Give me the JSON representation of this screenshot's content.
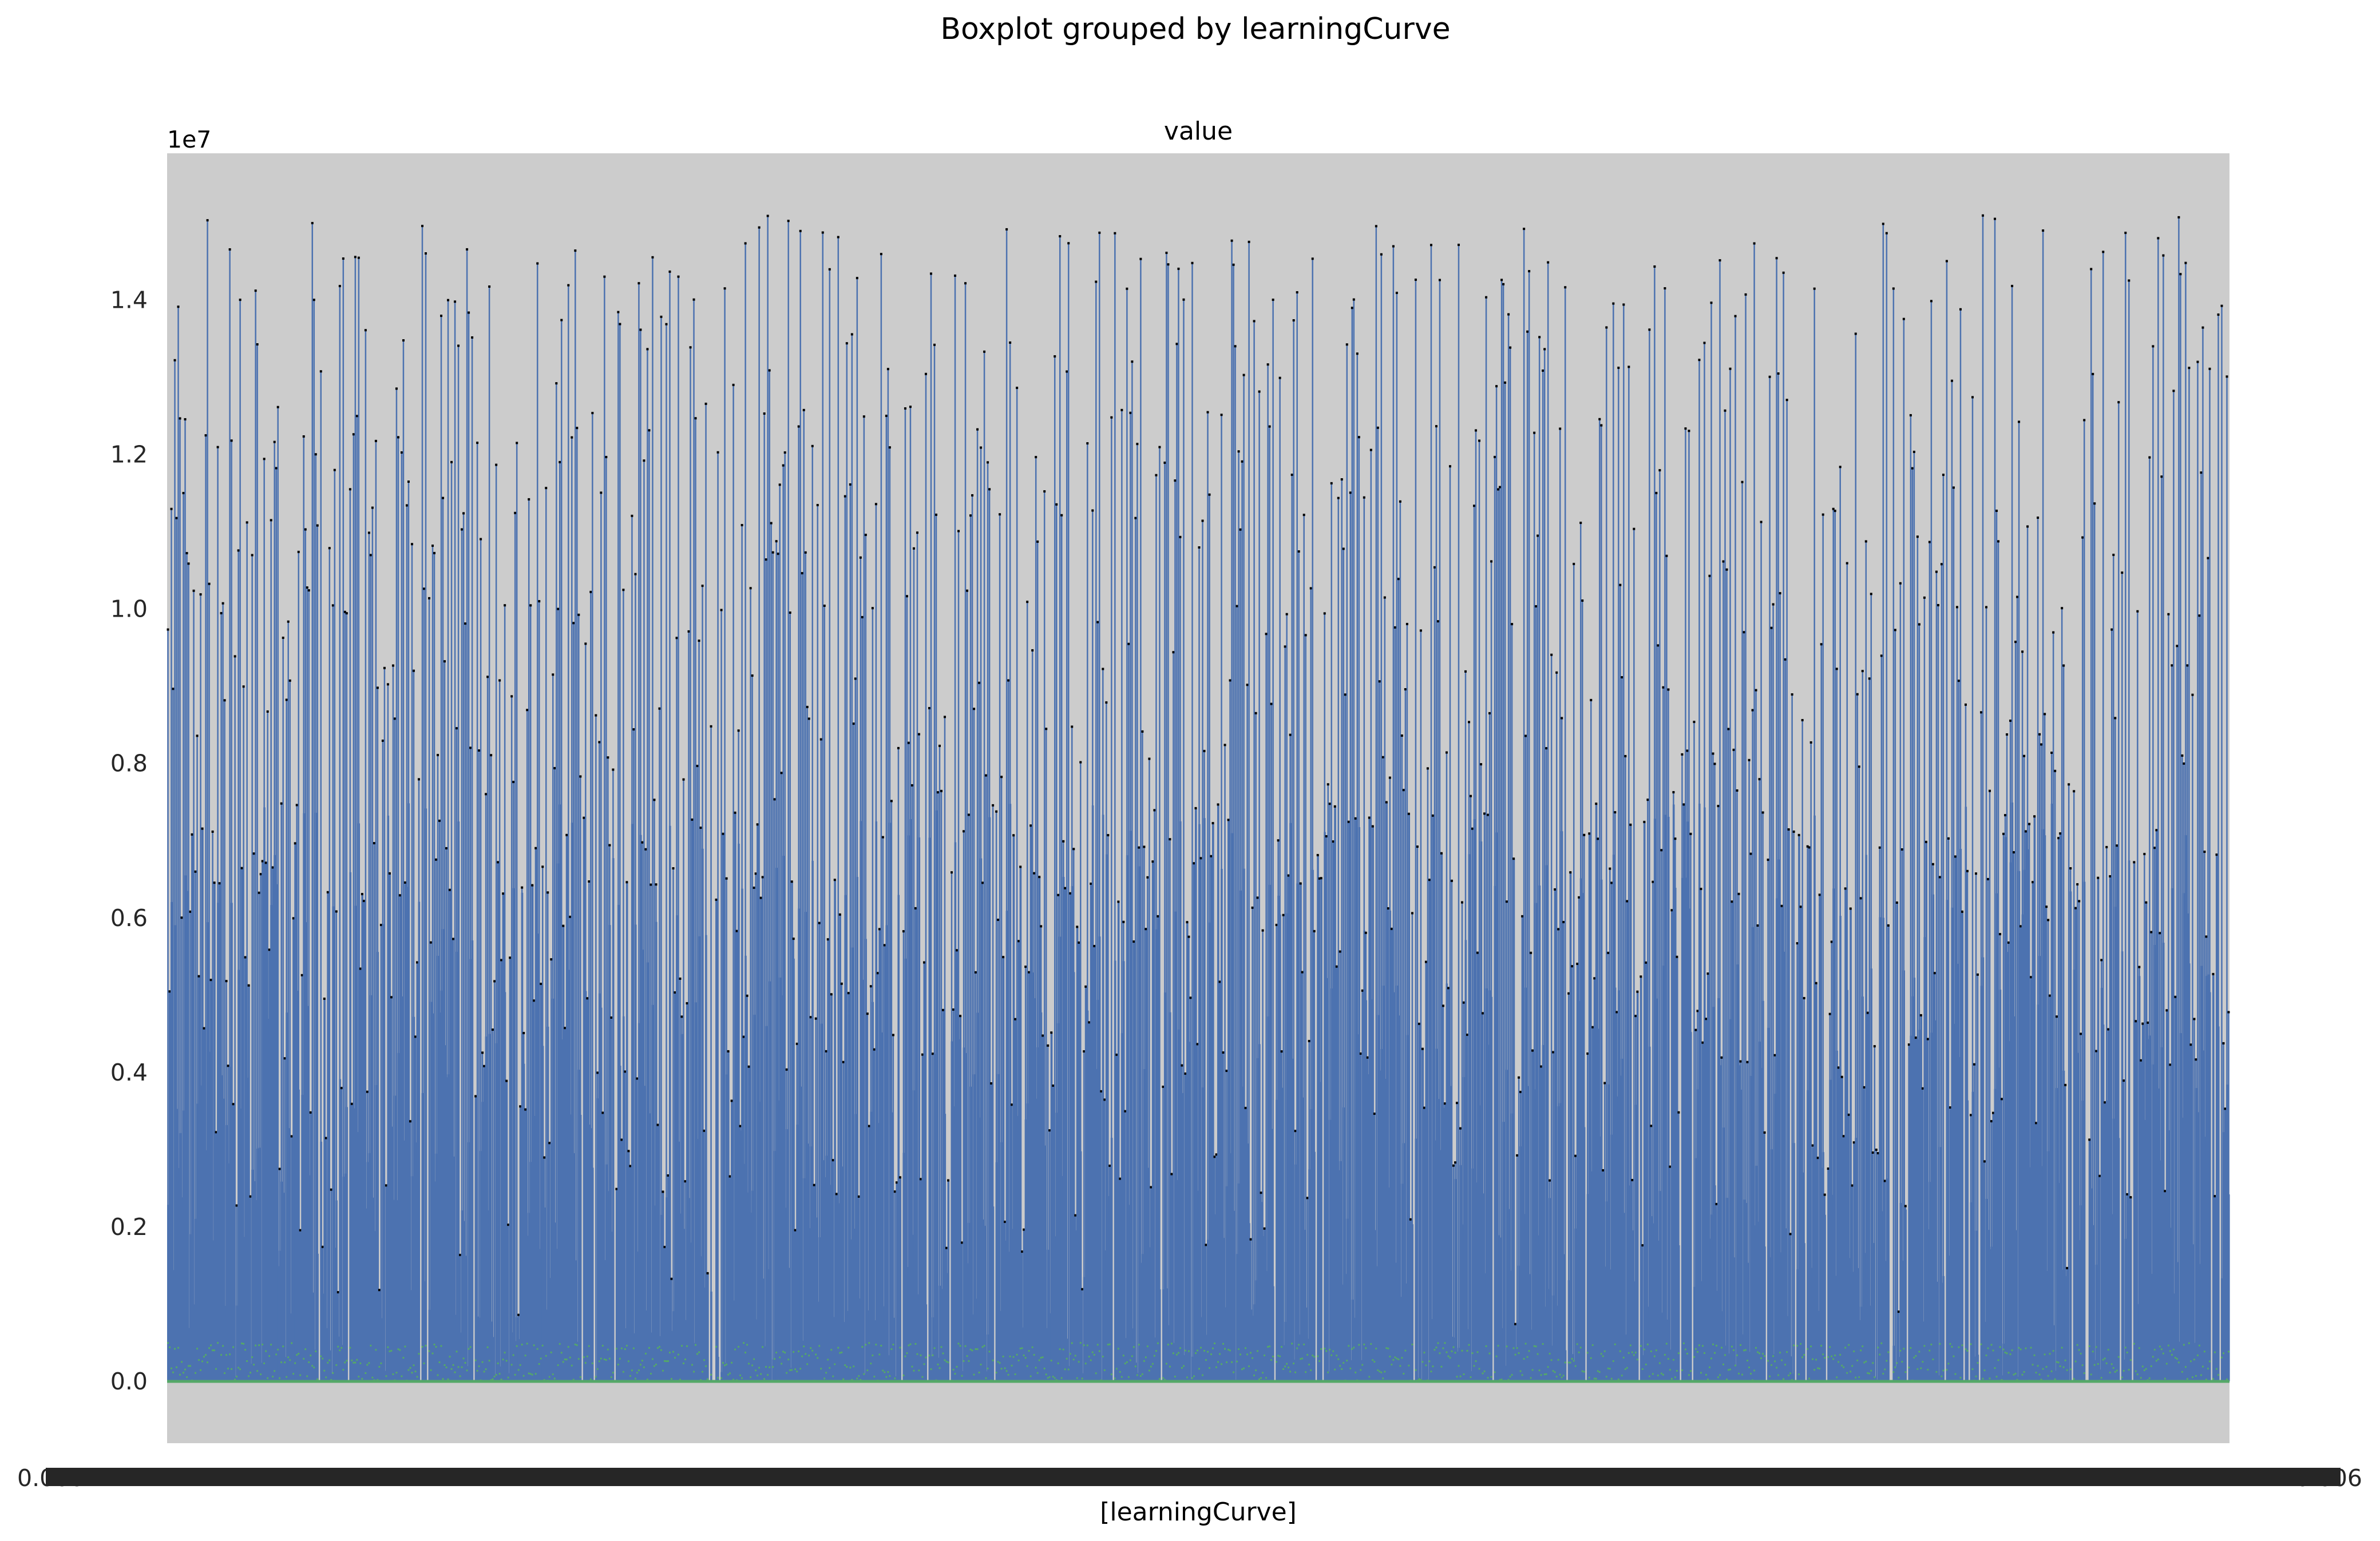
{
  "chart_data": {
    "type": "box",
    "suptitle": "Boxplot grouped by learningCurve",
    "title": "value",
    "xlabel": "[learningCurve]",
    "ylabel": "",
    "y_offset_label": "1e7",
    "y_tick_labels": [
      "0.0",
      "0.2",
      "0.4",
      "0.6",
      "0.8",
      "1.0",
      "1.2",
      "1.4"
    ],
    "y_tick_values": [
      0.0,
      0.2,
      0.4,
      0.6,
      0.8,
      1.0,
      1.2,
      1.4
    ],
    "ylim": [
      -0.08,
      1.59
    ],
    "x_tick_first_label": "0.000",
    "x_tick_last_label": "0.006",
    "grid": false,
    "colors": {
      "background": "#cccccc",
      "box": "#4c72b0",
      "median": "#55a868",
      "caps": "#000000"
    },
    "box_series_summary": {
      "name": "value",
      "box_count_estimate": 1200,
      "median_range": [
        0.0,
        0.05
      ],
      "q3_range": [
        0.0,
        0.75
      ],
      "upper_whisker_range": [
        0.05,
        1.51
      ]
    }
  }
}
